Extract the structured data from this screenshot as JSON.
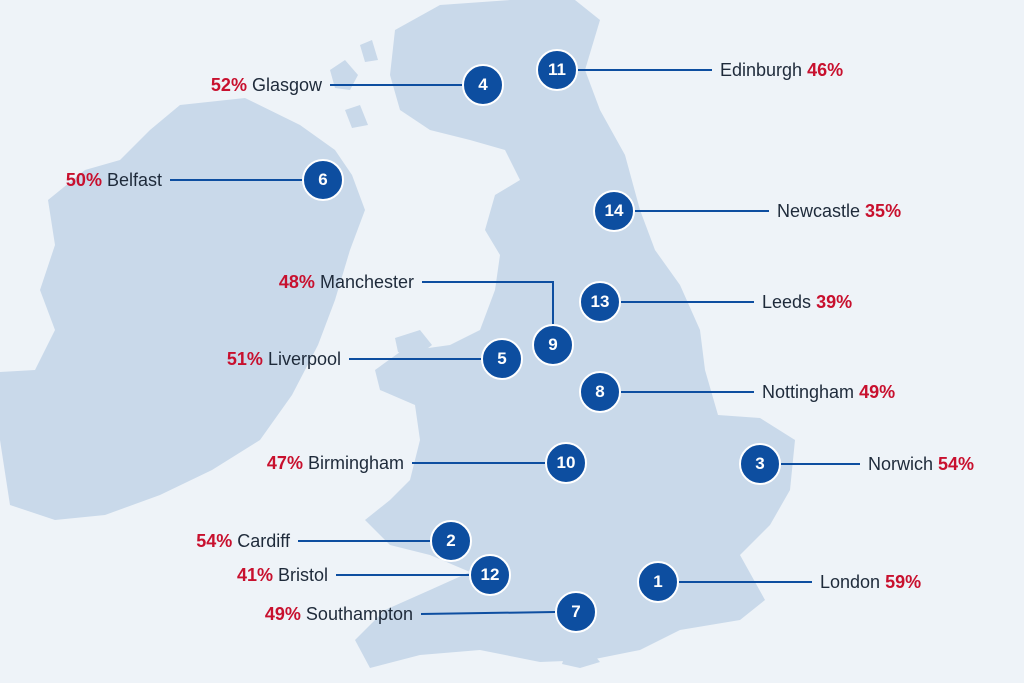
{
  "colors": {
    "background": "#eef3f8",
    "land": "#c9d9ea",
    "marker_fill": "#0d4ea0",
    "connector_line": "#0d4ea0",
    "percent_text": "#c8102e",
    "city_text": "#1e2a3a"
  },
  "cities": [
    {
      "rank": "1",
      "name": "London",
      "percent": "59%"
    },
    {
      "rank": "2",
      "name": "Cardiff",
      "percent": "54%"
    },
    {
      "rank": "3",
      "name": "Norwich",
      "percent": "54%"
    },
    {
      "rank": "4",
      "name": "Glasgow",
      "percent": "52%"
    },
    {
      "rank": "5",
      "name": "Liverpool",
      "percent": "51%"
    },
    {
      "rank": "6",
      "name": "Belfast",
      "percent": "50%"
    },
    {
      "rank": "7",
      "name": "Southampton",
      "percent": "49%"
    },
    {
      "rank": "8",
      "name": "Nottingham",
      "percent": "49%"
    },
    {
      "rank": "9",
      "name": "Manchester",
      "percent": "48%"
    },
    {
      "rank": "10",
      "name": "Birmingham",
      "percent": "47%"
    },
    {
      "rank": "11",
      "name": "Edinburgh",
      "percent": "46%"
    },
    {
      "rank": "12",
      "name": "Bristol",
      "percent": "41%"
    },
    {
      "rank": "13",
      "name": "Leeds",
      "percent": "39%"
    },
    {
      "rank": "14",
      "name": "Newcastle",
      "percent": "35%"
    }
  ]
}
